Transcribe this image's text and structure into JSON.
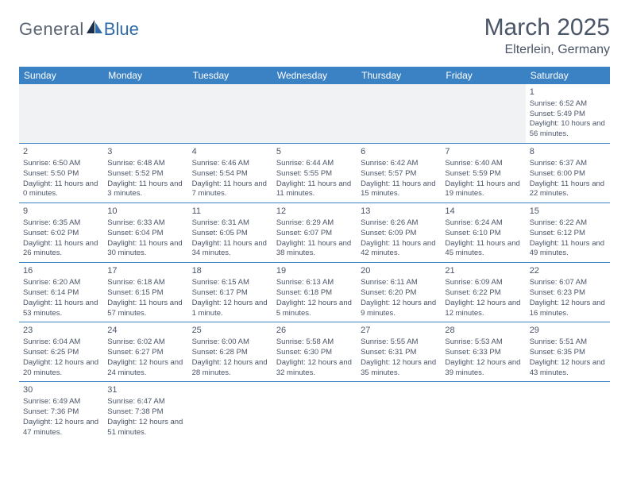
{
  "logo": {
    "text1": "General",
    "text2": "Blue"
  },
  "title": "March 2025",
  "location": "Elterlein, Germany",
  "header_bg": "#3b82c4",
  "day_names": [
    "Sunday",
    "Monday",
    "Tuesday",
    "Wednesday",
    "Thursday",
    "Friday",
    "Saturday"
  ],
  "weeks": [
    [
      {
        "blank": true
      },
      {
        "blank": true
      },
      {
        "blank": true
      },
      {
        "blank": true
      },
      {
        "blank": true
      },
      {
        "blank": true
      },
      {
        "day": "1",
        "sunrise": "Sunrise: 6:52 AM",
        "sunset": "Sunset: 5:49 PM",
        "daylight": "Daylight: 10 hours and 56 minutes."
      }
    ],
    [
      {
        "day": "2",
        "sunrise": "Sunrise: 6:50 AM",
        "sunset": "Sunset: 5:50 PM",
        "daylight": "Daylight: 11 hours and 0 minutes."
      },
      {
        "day": "3",
        "sunrise": "Sunrise: 6:48 AM",
        "sunset": "Sunset: 5:52 PM",
        "daylight": "Daylight: 11 hours and 3 minutes."
      },
      {
        "day": "4",
        "sunrise": "Sunrise: 6:46 AM",
        "sunset": "Sunset: 5:54 PM",
        "daylight": "Daylight: 11 hours and 7 minutes."
      },
      {
        "day": "5",
        "sunrise": "Sunrise: 6:44 AM",
        "sunset": "Sunset: 5:55 PM",
        "daylight": "Daylight: 11 hours and 11 minutes."
      },
      {
        "day": "6",
        "sunrise": "Sunrise: 6:42 AM",
        "sunset": "Sunset: 5:57 PM",
        "daylight": "Daylight: 11 hours and 15 minutes."
      },
      {
        "day": "7",
        "sunrise": "Sunrise: 6:40 AM",
        "sunset": "Sunset: 5:59 PM",
        "daylight": "Daylight: 11 hours and 19 minutes."
      },
      {
        "day": "8",
        "sunrise": "Sunrise: 6:37 AM",
        "sunset": "Sunset: 6:00 PM",
        "daylight": "Daylight: 11 hours and 22 minutes."
      }
    ],
    [
      {
        "day": "9",
        "sunrise": "Sunrise: 6:35 AM",
        "sunset": "Sunset: 6:02 PM",
        "daylight": "Daylight: 11 hours and 26 minutes."
      },
      {
        "day": "10",
        "sunrise": "Sunrise: 6:33 AM",
        "sunset": "Sunset: 6:04 PM",
        "daylight": "Daylight: 11 hours and 30 minutes."
      },
      {
        "day": "11",
        "sunrise": "Sunrise: 6:31 AM",
        "sunset": "Sunset: 6:05 PM",
        "daylight": "Daylight: 11 hours and 34 minutes."
      },
      {
        "day": "12",
        "sunrise": "Sunrise: 6:29 AM",
        "sunset": "Sunset: 6:07 PM",
        "daylight": "Daylight: 11 hours and 38 minutes."
      },
      {
        "day": "13",
        "sunrise": "Sunrise: 6:26 AM",
        "sunset": "Sunset: 6:09 PM",
        "daylight": "Daylight: 11 hours and 42 minutes."
      },
      {
        "day": "14",
        "sunrise": "Sunrise: 6:24 AM",
        "sunset": "Sunset: 6:10 PM",
        "daylight": "Daylight: 11 hours and 45 minutes."
      },
      {
        "day": "15",
        "sunrise": "Sunrise: 6:22 AM",
        "sunset": "Sunset: 6:12 PM",
        "daylight": "Daylight: 11 hours and 49 minutes."
      }
    ],
    [
      {
        "day": "16",
        "sunrise": "Sunrise: 6:20 AM",
        "sunset": "Sunset: 6:14 PM",
        "daylight": "Daylight: 11 hours and 53 minutes."
      },
      {
        "day": "17",
        "sunrise": "Sunrise: 6:18 AM",
        "sunset": "Sunset: 6:15 PM",
        "daylight": "Daylight: 11 hours and 57 minutes."
      },
      {
        "day": "18",
        "sunrise": "Sunrise: 6:15 AM",
        "sunset": "Sunset: 6:17 PM",
        "daylight": "Daylight: 12 hours and 1 minute."
      },
      {
        "day": "19",
        "sunrise": "Sunrise: 6:13 AM",
        "sunset": "Sunset: 6:18 PM",
        "daylight": "Daylight: 12 hours and 5 minutes."
      },
      {
        "day": "20",
        "sunrise": "Sunrise: 6:11 AM",
        "sunset": "Sunset: 6:20 PM",
        "daylight": "Daylight: 12 hours and 9 minutes."
      },
      {
        "day": "21",
        "sunrise": "Sunrise: 6:09 AM",
        "sunset": "Sunset: 6:22 PM",
        "daylight": "Daylight: 12 hours and 12 minutes."
      },
      {
        "day": "22",
        "sunrise": "Sunrise: 6:07 AM",
        "sunset": "Sunset: 6:23 PM",
        "daylight": "Daylight: 12 hours and 16 minutes."
      }
    ],
    [
      {
        "day": "23",
        "sunrise": "Sunrise: 6:04 AM",
        "sunset": "Sunset: 6:25 PM",
        "daylight": "Daylight: 12 hours and 20 minutes."
      },
      {
        "day": "24",
        "sunrise": "Sunrise: 6:02 AM",
        "sunset": "Sunset: 6:27 PM",
        "daylight": "Daylight: 12 hours and 24 minutes."
      },
      {
        "day": "25",
        "sunrise": "Sunrise: 6:00 AM",
        "sunset": "Sunset: 6:28 PM",
        "daylight": "Daylight: 12 hours and 28 minutes."
      },
      {
        "day": "26",
        "sunrise": "Sunrise: 5:58 AM",
        "sunset": "Sunset: 6:30 PM",
        "daylight": "Daylight: 12 hours and 32 minutes."
      },
      {
        "day": "27",
        "sunrise": "Sunrise: 5:55 AM",
        "sunset": "Sunset: 6:31 PM",
        "daylight": "Daylight: 12 hours and 35 minutes."
      },
      {
        "day": "28",
        "sunrise": "Sunrise: 5:53 AM",
        "sunset": "Sunset: 6:33 PM",
        "daylight": "Daylight: 12 hours and 39 minutes."
      },
      {
        "day": "29",
        "sunrise": "Sunrise: 5:51 AM",
        "sunset": "Sunset: 6:35 PM",
        "daylight": "Daylight: 12 hours and 43 minutes."
      }
    ],
    [
      {
        "day": "30",
        "sunrise": "Sunrise: 6:49 AM",
        "sunset": "Sunset: 7:36 PM",
        "daylight": "Daylight: 12 hours and 47 minutes."
      },
      {
        "day": "31",
        "sunrise": "Sunrise: 6:47 AM",
        "sunset": "Sunset: 7:38 PM",
        "daylight": "Daylight: 12 hours and 51 minutes."
      },
      {
        "blank": true,
        "nobg": true
      },
      {
        "blank": true,
        "nobg": true
      },
      {
        "blank": true,
        "nobg": true
      },
      {
        "blank": true,
        "nobg": true
      },
      {
        "blank": true,
        "nobg": true
      }
    ]
  ]
}
